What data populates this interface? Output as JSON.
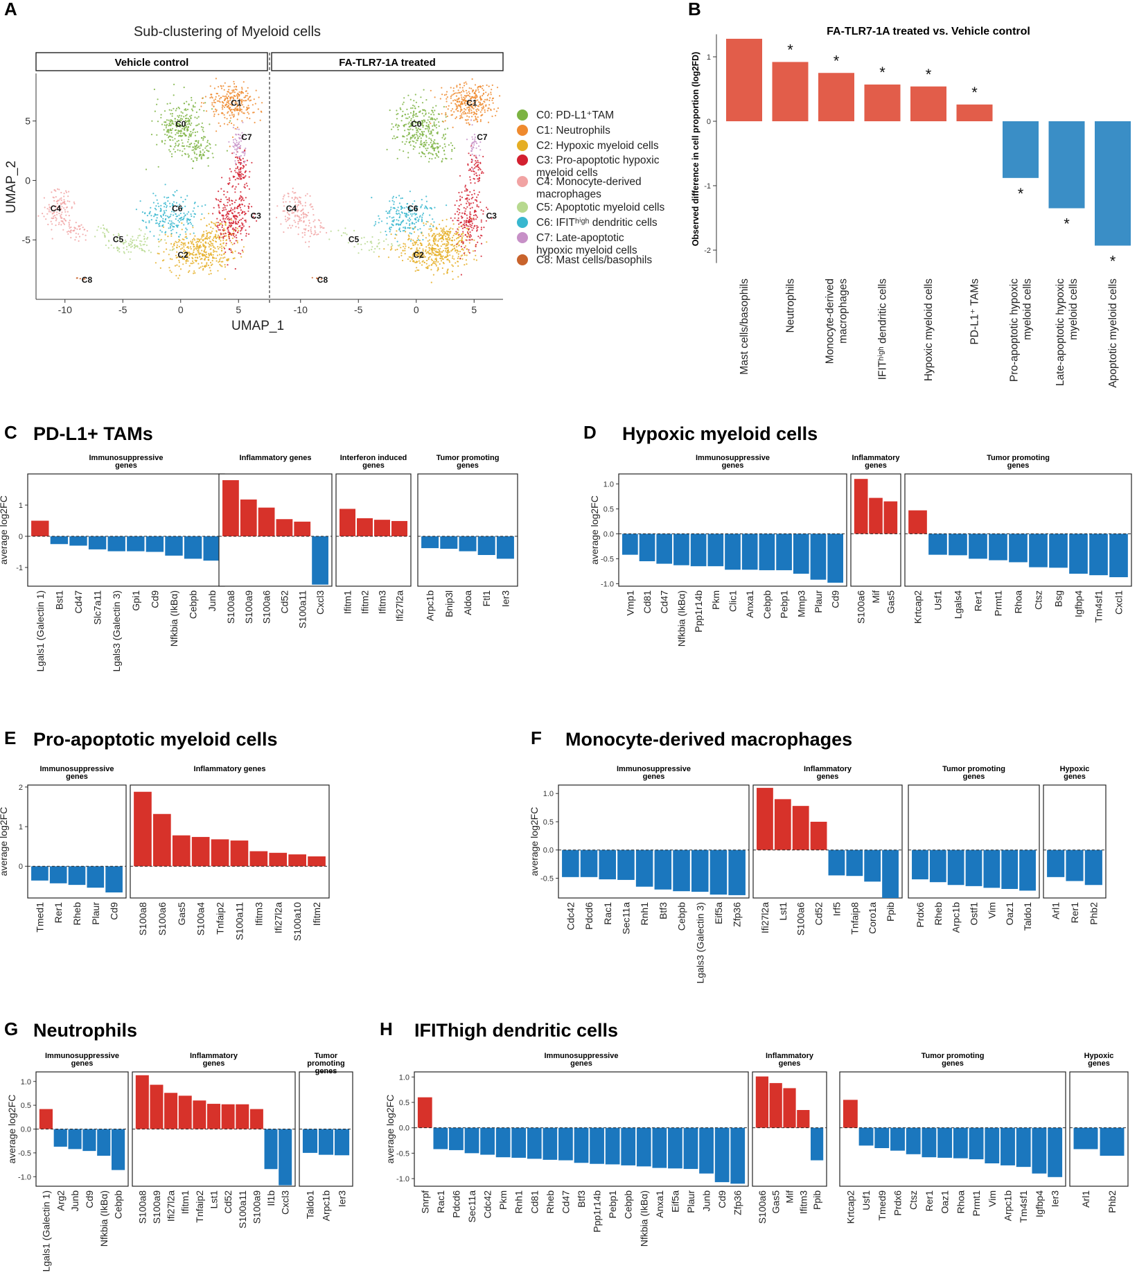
{
  "umap": {
    "label": "A",
    "title": "Sub-clustering of Myeloid cells",
    "xlabel": "UMAP_1",
    "ylabel": "UMAP_2",
    "panels": [
      "Vehicle control",
      "FA-TLR7-1A treated"
    ],
    "xticks": [
      "-10",
      "-5",
      "0",
      "5"
    ],
    "yticks": [
      "5",
      "0",
      "-5"
    ],
    "clusters": [
      {
        "id": "C0",
        "name": "PD-L1+TAM",
        "color": "#7cb342"
      },
      {
        "id": "C1",
        "name": "Neutrophils",
        "color": "#ef8a2e"
      },
      {
        "id": "C2",
        "name": "Hypoxic myeloid cells",
        "color": "#e5ae24"
      },
      {
        "id": "C3",
        "name": "Pro-apoptotic hypoxic myeloid cells",
        "color": "#d32030"
      },
      {
        "id": "C4",
        "name": "Monocyte-derived macrophages",
        "color": "#f1a3a3"
      },
      {
        "id": "C5",
        "name": "Apoptotic myeloid cells",
        "color": "#b7d98f"
      },
      {
        "id": "C6",
        "name": "IFIThigh dendritic cells",
        "color": "#38b7cf"
      },
      {
        "id": "C7",
        "name": "Late-apoptotic hypoxic myeloid cells",
        "color": "#c790c7"
      },
      {
        "id": "C8",
        "name": "Mast cells/basophils",
        "color": "#c8632c"
      }
    ],
    "legend": [
      [
        "C0: PD-L1⁺TAM"
      ],
      [
        "C1: Neutrophils"
      ],
      [
        "C2: Hypoxic myeloid cells"
      ],
      [
        "C3: Pro-apoptotic hypoxic",
        "myeloid cells"
      ],
      [
        "C4: Monocyte-derived",
        "macrophages"
      ],
      [
        "C5: Apoptotic myeloid cells"
      ],
      [
        "C6: IFITʰⁱᵍʰ dendritic cells"
      ],
      [
        "C7: Late-apoptotic",
        "hypoxic myeloid cells"
      ],
      [
        "C8: Mast cells/basophils"
      ]
    ]
  },
  "chart_data": [
    {
      "label": "B",
      "type": "bar",
      "title": "FA-TLR7-1A treated vs. Vehicle control",
      "ylabel": "Observed difference in cell proportion (log2FD)",
      "ylim": [
        -2.2,
        1.35
      ],
      "yticks": [
        1,
        0,
        -1,
        -2
      ],
      "star": "*",
      "categories": [
        [
          "Mast cells/basophils"
        ],
        [
          "Neutrophils"
        ],
        [
          "Monocyte-derived",
          "macrophages"
        ],
        [
          "IFITʰⁱᵍʰ dendritic cells"
        ],
        [
          "Hypoxic myeloid cells"
        ],
        [
          "PD-L1⁺ TAMs"
        ],
        [
          "Pro-apoptotic hypoxic",
          "myeloid cells"
        ],
        [
          "Late-apoptotic hypoxic",
          "myeloid cells"
        ],
        [
          "Apoptotic myeloid cells"
        ]
      ],
      "values": [
        1.28,
        0.92,
        0.75,
        0.57,
        0.54,
        0.26,
        -0.88,
        -1.35,
        -1.93
      ],
      "significant": [
        false,
        true,
        true,
        true,
        true,
        true,
        true,
        true,
        true
      ],
      "colors": {
        "up": "#e25d4a",
        "down": "#3a8ec6"
      }
    },
    {
      "label": "C",
      "title": "PD-L1+ TAMs",
      "type": "bar",
      "ylabel": "average log2FC",
      "ylim": [
        -1.6,
        2.0
      ],
      "yticks": [
        1,
        0,
        -1
      ],
      "groups": [
        {
          "title": [
            "Immunosuppressive",
            "genes"
          ],
          "genes": [
            "Lgals1 (Galectin 1)",
            "Bst1",
            "Cd47",
            "Slc7a11",
            "Lgals3 (Galectin 3)",
            "Gpi1",
            "Cd9",
            "Nfkbia (IkBα)",
            "Cebpb",
            "Junb"
          ],
          "values": [
            0.5,
            -0.25,
            -0.3,
            -0.42,
            -0.48,
            -0.48,
            -0.5,
            -0.62,
            -0.72,
            -0.78
          ]
        },
        {
          "title": [
            "Inflammatory genes"
          ],
          "genes": [
            "S100a8",
            "S100a9",
            "S100a6",
            "Cd52",
            "S100a11",
            "Cxcl3"
          ],
          "values": [
            1.8,
            1.18,
            0.92,
            0.55,
            0.47,
            -1.55
          ]
        },
        {
          "title": [
            "Interferon induced",
            "genes"
          ],
          "genes": [
            "Ifitm1",
            "Ifitm2",
            "Ifitm3",
            "Ifi27l2a"
          ],
          "values": [
            0.88,
            0.58,
            0.53,
            0.49
          ]
        },
        {
          "title": [
            "Tumor promoting",
            "genes"
          ],
          "genes": [
            "Arpc1b",
            "Bnip3l",
            "Aldoa",
            "Ftl1",
            "Ier3"
          ],
          "values": [
            -0.38,
            -0.4,
            -0.48,
            -0.6,
            -0.72
          ]
        }
      ],
      "colors": {
        "up": "#d7322a",
        "down": "#1b77be"
      }
    },
    {
      "label": "D",
      "title": "Hypoxic myeloid cells",
      "type": "bar",
      "ylabel": "average log2FC",
      "ylim": [
        -1.05,
        1.2
      ],
      "yticks": [
        1.0,
        0.5,
        0.0,
        -0.5,
        -1.0
      ],
      "groups": [
        {
          "title": [
            "Immunosuppressive",
            "genes"
          ],
          "genes": [
            "Vmp1",
            "Cd81",
            "Cd47",
            "Nfkbia (IkBα)",
            "Ppp1r14b",
            "Pkm",
            "Clic1",
            "Anxa1",
            "Cebpb",
            "Pebp1",
            "Mmp3",
            "Plaur",
            "Cd9"
          ],
          "values": [
            -0.42,
            -0.55,
            -0.6,
            -0.63,
            -0.65,
            -0.65,
            -0.72,
            -0.72,
            -0.73,
            -0.73,
            -0.8,
            -0.92,
            -0.98
          ]
        },
        {
          "title": [
            "Inflammatory",
            "genes"
          ],
          "genes": [
            "S100a6",
            "Mif",
            "Gas5"
          ],
          "values": [
            1.1,
            0.72,
            0.65
          ]
        },
        {
          "title": [
            "Tumor promoting",
            "genes"
          ],
          "genes": [
            "Krtcap2",
            "Usf1",
            "Lgals4",
            "Rer1",
            "Prmt1",
            "Rhoa",
            "Ctsz",
            "Bsg",
            "Igfbp4",
            "Tm4sf1",
            "Cxcl1"
          ],
          "values": [
            0.47,
            -0.42,
            -0.43,
            -0.5,
            -0.53,
            -0.57,
            -0.67,
            -0.68,
            -0.8,
            -0.83,
            -0.87
          ]
        }
      ],
      "colors": {
        "up": "#d7322a",
        "down": "#1b77be"
      }
    },
    {
      "label": "E",
      "title": "Pro-apoptotic myeloid cells",
      "type": "bar",
      "ylabel": "average log2FC",
      "ylim": [
        -0.8,
        2.05
      ],
      "yticks": [
        2,
        1,
        0
      ],
      "groups": [
        {
          "title": [
            "Immunosuppressive",
            "genes"
          ],
          "genes": [
            "Tmed1",
            "Rer1",
            "Rheb",
            "Plaur",
            "Cd9"
          ],
          "values": [
            -0.36,
            -0.43,
            -0.47,
            -0.54,
            -0.66
          ]
        },
        {
          "title": [
            "Inflammatory genes"
          ],
          "genes": [
            "S100a8",
            "S100a6",
            "Gas5",
            "S100a4",
            "Tnfaip2",
            "S100a11",
            "Ifitm3",
            "Ifi27l2a",
            "S100a10",
            "Ifitm2"
          ],
          "values": [
            1.88,
            1.32,
            0.78,
            0.74,
            0.68,
            0.65,
            0.38,
            0.34,
            0.3,
            0.25
          ]
        }
      ],
      "colors": {
        "up": "#d7322a",
        "down": "#1b77be"
      }
    },
    {
      "label": "F",
      "title": "Monocyte-derived macrophages",
      "type": "bar",
      "ylabel": "average log2FC",
      "ylim": [
        -0.85,
        1.15
      ],
      "yticks": [
        1.0,
        0.5,
        0.0,
        -0.5
      ],
      "groups": [
        {
          "title": [
            "Immunosuppressive",
            "genes"
          ],
          "genes": [
            "Cdc42",
            "Pdcd6",
            "Rac1",
            "Sec11a",
            "Rnh1",
            "Btf3",
            "Cebpb",
            "Lgals3 (Galectin 3)",
            "Eif5a",
            "Zfp36"
          ],
          "values": [
            -0.48,
            -0.48,
            -0.52,
            -0.53,
            -0.65,
            -0.7,
            -0.73,
            -0.74,
            -0.79,
            -0.8
          ]
        },
        {
          "title": [
            "Inflammatory",
            "genes"
          ],
          "genes": [
            "Ifi27l2a",
            "Lst1",
            "S100a6",
            "Cd52",
            "Irf5",
            "Tnfaip8",
            "Coro1a",
            "Ppib"
          ],
          "values": [
            1.1,
            0.9,
            0.78,
            0.5,
            -0.45,
            -0.46,
            -0.56,
            -0.85
          ]
        },
        {
          "title": [
            "Tumor promoting",
            "genes"
          ],
          "genes": [
            "Prdx6",
            "Rheb",
            "Arpc1b",
            "Ostf1",
            "Vim",
            "Oaz1",
            "Taldo1"
          ],
          "values": [
            -0.52,
            -0.57,
            -0.62,
            -0.64,
            -0.67,
            -0.69,
            -0.72
          ]
        },
        {
          "title": [
            "Hypoxic",
            "genes"
          ],
          "genes": [
            "Arl1",
            "Rer1",
            "Phb2"
          ],
          "values": [
            -0.48,
            -0.55,
            -0.62
          ]
        }
      ],
      "colors": {
        "up": "#d7322a",
        "down": "#1b77be"
      }
    },
    {
      "label": "G",
      "title": "Neutrophils",
      "type": "bar",
      "ylabel": "average log2FC",
      "ylim": [
        -1.2,
        1.2
      ],
      "yticks": [
        1.0,
        0.5,
        0.0,
        -0.5,
        -1.0
      ],
      "groups": [
        {
          "title": [
            "Immunosuppressive",
            "genes"
          ],
          "genes": [
            "Lgals1 (Galectin 1)",
            "Arg2",
            "Junb",
            "Cd9",
            "Nfkbia (IkBα)",
            "Cebpb"
          ],
          "values": [
            0.42,
            -0.37,
            -0.42,
            -0.46,
            -0.56,
            -0.86
          ]
        },
        {
          "title": [
            "Inflammatory",
            "genes"
          ],
          "genes": [
            "S100a8",
            "S100a9",
            "Ifi27l2a",
            "Ifitm1",
            "Tnfaip2",
            "Lst1",
            "Cd52",
            "S100a11",
            "S100a9",
            "Il1b",
            "Cxcl3"
          ],
          "values": [
            1.13,
            0.93,
            0.76,
            0.7,
            0.6,
            0.53,
            0.52,
            0.52,
            0.42,
            -0.84,
            -1.18
          ]
        },
        {
          "title": [
            "Tumor",
            "promoting",
            "genes"
          ],
          "genes": [
            "Taldo1",
            "Arpc1b",
            "Ier3"
          ],
          "values": [
            -0.5,
            -0.54,
            -0.55
          ]
        }
      ],
      "colors": {
        "up": "#d7322a",
        "down": "#1b77be"
      }
    },
    {
      "label": "H",
      "title": "IFIThigh dendritic cells",
      "type": "bar",
      "ylabel": "average log2FC",
      "ylim": [
        -1.15,
        1.1
      ],
      "yticks": [
        1.0,
        0.5,
        0.0,
        -0.5,
        -1.0
      ],
      "groups": [
        {
          "title": [
            "Immunosuppressive",
            "genes"
          ],
          "genes": [
            "Snrpf",
            "Rac1",
            "Pdcd6",
            "Sec11a",
            "Cdc42",
            "Pkm",
            "Rnh1",
            "Cd81",
            "Rheb",
            "Cd47",
            "Btf3",
            "Ppp1r14b",
            "Pebp1",
            "Cebpb",
            "Nfkbia (IkBα)",
            "Anxa1",
            "Eif5a",
            "Plaur",
            "Junb",
            "Cd9",
            "Zfp36"
          ],
          "values": [
            0.6,
            -0.42,
            -0.44,
            -0.5,
            -0.53,
            -0.58,
            -0.59,
            -0.61,
            -0.63,
            -0.64,
            -0.69,
            -0.71,
            -0.72,
            -0.74,
            -0.76,
            -0.79,
            -0.8,
            -0.81,
            -0.9,
            -1.07,
            -1.1
          ]
        },
        {
          "title": [
            "Inflammatory",
            "genes"
          ],
          "genes": [
            "S100a6",
            "Gas5",
            "Mif",
            "Ifitm3",
            "Ppib"
          ],
          "values": [
            1.01,
            0.88,
            0.78,
            0.35,
            -0.64
          ]
        },
        {
          "title": [
            "Tumor promoting",
            "genes"
          ],
          "genes": [
            "Krtcap2",
            "Usf1",
            "Tmed9",
            "Prdx6",
            "Ctsz",
            "Rer1",
            "Oaz1",
            "Rhoa",
            "Prmt1",
            "Vim",
            "Arpc1b",
            "Tm4sf1",
            "Igfbp4",
            "Ier3"
          ],
          "values": [
            0.55,
            -0.35,
            -0.4,
            -0.45,
            -0.52,
            -0.58,
            -0.59,
            -0.6,
            -0.62,
            -0.7,
            -0.74,
            -0.77,
            -0.9,
            -0.97
          ]
        },
        {
          "title": [
            "Hypoxic",
            "genes"
          ],
          "genes": [
            "Arl1",
            "Phb2"
          ],
          "values": [
            -0.42,
            -0.55
          ]
        }
      ],
      "colors": {
        "up": "#d7322a",
        "down": "#1b77be"
      }
    }
  ]
}
